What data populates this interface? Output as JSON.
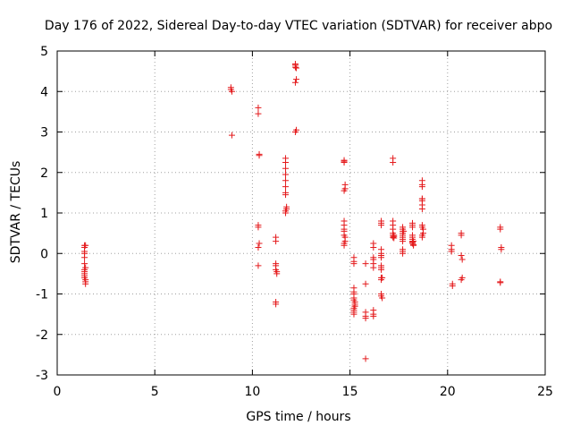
{
  "chart_data": {
    "type": "scatter",
    "title": "Day 176 of 2022, Sidereal Day-to-day VTEC variation (SDTVAR) for receiver abpo",
    "xlabel": "GPS time / hours",
    "ylabel": "SDTVAR / TECUs",
    "xlim": [
      0,
      25
    ],
    "ylim": [
      -3,
      5
    ],
    "x_ticks": [
      0,
      5,
      10,
      15,
      20,
      25
    ],
    "y_ticks": [
      -3,
      -2,
      -1,
      0,
      1,
      2,
      3,
      4,
      5
    ],
    "grid": true,
    "marker": "plus",
    "colors": {
      "points": "#e41a1c",
      "grid": "#a0a0a0",
      "axis": "#000000"
    },
    "series": [
      {
        "name": "SDTVAR",
        "x": [
          1.4,
          1.4,
          1.4,
          1.4,
          1.4,
          1.4,
          1.4,
          1.4,
          1.4,
          1.4,
          1.4,
          1.45,
          1.45,
          1.45,
          1.45,
          1.45,
          8.9,
          8.9,
          8.95,
          8.95,
          10.3,
          10.3,
          10.35,
          10.35,
          10.3,
          10.3,
          10.35,
          10.3,
          10.3,
          11.2,
          11.2,
          11.2,
          11.2,
          11.2,
          11.25,
          11.25,
          11.2,
          11.2,
          11.7,
          11.7,
          11.7,
          11.7,
          11.7,
          11.7,
          11.7,
          11.7,
          11.75,
          11.75,
          11.7,
          11.7,
          12.2,
          12.2,
          12.2,
          12.25,
          12.25,
          12.2,
          12.25,
          12.2,
          14.7,
          14.7,
          14.7,
          14.75,
          14.75,
          14.7,
          14.7,
          14.7,
          14.7,
          14.7,
          14.7,
          14.75,
          14.75,
          14.7,
          14.7,
          15.2,
          15.2,
          15.2,
          15.2,
          15.2,
          15.2,
          15.2,
          15.2,
          15.25,
          15.25,
          15.25,
          15.2,
          15.2,
          15.2,
          15.2,
          15.25,
          15.8,
          15.8,
          15.8,
          15.8,
          15.8,
          15.8,
          16.2,
          16.2,
          16.2,
          16.2,
          16.2,
          16.2,
          16.2,
          16.2,
          16.2,
          16.6,
          16.6,
          16.6,
          16.6,
          16.6,
          16.6,
          16.6,
          16.6,
          16.6,
          16.6,
          16.6,
          16.6,
          16.6,
          16.6,
          16.65,
          16.65,
          17.2,
          17.2,
          17.2,
          17.2,
          17.2,
          17.2,
          17.2,
          17.2,
          17.25,
          17.25,
          17.25,
          17.7,
          17.7,
          17.7,
          17.7,
          17.7,
          17.7,
          17.7,
          17.7,
          17.7,
          17.7,
          17.7,
          17.75,
          18.2,
          18.2,
          18.2,
          18.2,
          18.2,
          18.2,
          18.2,
          18.2,
          18.25,
          18.25,
          18.25,
          18.2,
          18.7,
          18.7,
          18.7,
          18.7,
          18.7,
          18.7,
          18.7,
          18.7,
          18.75,
          18.75,
          18.7,
          18.7,
          18.7,
          18.7,
          20.2,
          20.2,
          20.2,
          20.25,
          20.25,
          20.7,
          20.7,
          20.7,
          20.75,
          20.75,
          20.7,
          22.7,
          22.7,
          22.75,
          22.75,
          22.7,
          22.7
        ],
        "y": [
          0.2,
          0.15,
          0.05,
          0.0,
          -0.1,
          -0.25,
          -0.4,
          -0.45,
          -0.5,
          -0.55,
          -0.6,
          -0.65,
          -0.7,
          -0.75,
          -0.35,
          0.2,
          4.1,
          4.05,
          4.0,
          2.92,
          3.6,
          3.45,
          2.45,
          2.42,
          0.7,
          0.65,
          0.25,
          0.15,
          -0.3,
          0.4,
          0.3,
          -0.25,
          -0.3,
          -0.4,
          -0.45,
          -0.5,
          -1.2,
          -1.25,
          2.35,
          2.25,
          2.1,
          1.95,
          1.8,
          1.65,
          1.5,
          1.45,
          1.15,
          1.1,
          1.05,
          1.0,
          4.68,
          4.65,
          4.6,
          4.58,
          4.3,
          4.22,
          3.05,
          3.0,
          2.3,
          2.28,
          2.25,
          1.7,
          1.6,
          1.55,
          0.8,
          0.7,
          0.6,
          0.55,
          0.45,
          0.4,
          0.3,
          0.25,
          0.2,
          -0.1,
          -0.2,
          -0.25,
          -0.85,
          -0.95,
          -1.0,
          -1.1,
          -1.15,
          -1.2,
          -1.25,
          -1.3,
          -1.35,
          -1.4,
          -1.45,
          -1.5,
          -1.3,
          -0.25,
          -0.75,
          -1.45,
          -1.6,
          -2.6,
          -1.55,
          0.25,
          0.15,
          -0.1,
          -0.15,
          -0.25,
          -0.35,
          -1.4,
          -1.5,
          -1.55,
          0.8,
          0.75,
          0.7,
          0.1,
          0.0,
          -0.05,
          -0.1,
          -0.3,
          -0.35,
          -0.4,
          -0.6,
          -0.65,
          -1.0,
          -1.05,
          -1.1,
          -0.6,
          2.35,
          2.25,
          0.8,
          0.7,
          0.6,
          0.5,
          0.45,
          0.4,
          0.45,
          0.42,
          0.38,
          0.65,
          0.6,
          0.55,
          0.5,
          0.45,
          0.4,
          0.35,
          0.3,
          0.1,
          0.05,
          0.0,
          0.55,
          0.75,
          0.7,
          0.65,
          0.45,
          0.4,
          0.35,
          0.3,
          0.25,
          0.2,
          0.3,
          0.22,
          0.28,
          1.8,
          1.7,
          1.65,
          1.35,
          1.3,
          1.2,
          1.1,
          0.7,
          0.6,
          0.5,
          0.45,
          0.4,
          0.65,
          1.35,
          0.2,
          0.1,
          0.05,
          -0.75,
          -0.8,
          0.5,
          0.45,
          -0.05,
          -0.15,
          -0.6,
          -0.65,
          0.65,
          0.6,
          0.15,
          0.1,
          -0.7,
          -0.72
        ]
      }
    ]
  }
}
